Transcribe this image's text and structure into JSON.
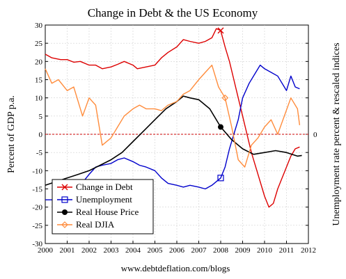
{
  "chart_data": {
    "type": "line",
    "title": "Change in Debt & the US Economy",
    "ylabel": "Percent of GDP p.a.",
    "y2label": "Unemployment rate percent & rescaled indices",
    "footer": "www.debtdeflation.com/blogs",
    "xlim": [
      2000,
      2012
    ],
    "ylim": [
      -30,
      30
    ],
    "xticks": [
      2000,
      2001,
      2002,
      2003,
      2004,
      2005,
      2006,
      2007,
      2008,
      2009,
      2010,
      2011,
      2012
    ],
    "yticks": [
      -30,
      -25,
      -20,
      -15,
      -10,
      -5,
      0,
      5,
      10,
      15,
      20,
      25,
      30
    ],
    "xtick_labels": [
      "2000",
      "2001",
      "2002",
      "2003",
      "2004",
      "2005",
      "2006",
      "2007",
      "2008",
      "2009",
      "2010",
      "2011",
      "2012"
    ],
    "ytick_labels": [
      "-30",
      "-25",
      "-20",
      "-15",
      "-10",
      "-5",
      "0",
      "5",
      "10",
      "15",
      "20",
      "25",
      "30"
    ],
    "right_zero_label": "0",
    "zero_line": true,
    "legend_position": "bottom-left",
    "series": [
      {
        "name": "Change in Debt",
        "color": "#dd0000",
        "marker": "x",
        "points": [
          [
            2000,
            22
          ],
          [
            2000.3,
            21
          ],
          [
            2000.7,
            20.5
          ],
          [
            2001,
            20.5
          ],
          [
            2001.3,
            19.8
          ],
          [
            2001.6,
            20
          ],
          [
            2002,
            19
          ],
          [
            2002.3,
            19
          ],
          [
            2002.6,
            18
          ],
          [
            2003,
            18.5
          ],
          [
            2003.3,
            19.2
          ],
          [
            2003.6,
            20
          ],
          [
            2004,
            19
          ],
          [
            2004.2,
            18
          ],
          [
            2004.6,
            18.5
          ],
          [
            2005,
            19
          ],
          [
            2005.3,
            21
          ],
          [
            2005.6,
            22.5
          ],
          [
            2006,
            24
          ],
          [
            2006.3,
            26
          ],
          [
            2006.6,
            25.5
          ],
          [
            2007,
            25
          ],
          [
            2007.3,
            25.5
          ],
          [
            2007.6,
            26.5
          ],
          [
            2007.8,
            29
          ],
          [
            2008,
            28.5
          ],
          [
            2008.2,
            24
          ],
          [
            2008.4,
            20
          ],
          [
            2008.6,
            15
          ],
          [
            2008.8,
            10
          ],
          [
            2009,
            5
          ],
          [
            2009.2,
            0
          ],
          [
            2009.4,
            -5
          ],
          [
            2009.6,
            -9
          ],
          [
            2009.8,
            -13
          ],
          [
            2010,
            -17
          ],
          [
            2010.2,
            -20
          ],
          [
            2010.4,
            -19
          ],
          [
            2010.6,
            -15
          ],
          [
            2010.8,
            -12
          ],
          [
            2011,
            -9
          ],
          [
            2011.2,
            -6
          ],
          [
            2011.4,
            -4
          ],
          [
            2011.6,
            -3.5
          ]
        ]
      },
      {
        "name": "Unemployment",
        "color": "#0000cc",
        "marker": "square",
        "points": [
          [
            2000,
            -18
          ],
          [
            2000.3,
            -18
          ],
          [
            2000.6,
            -17.5
          ],
          [
            2001,
            -17
          ],
          [
            2001.3,
            -16
          ],
          [
            2001.6,
            -14
          ],
          [
            2002,
            -11
          ],
          [
            2002.3,
            -9
          ],
          [
            2002.6,
            -8.5
          ],
          [
            2003,
            -8
          ],
          [
            2003.3,
            -7
          ],
          [
            2003.6,
            -6.5
          ],
          [
            2004,
            -7.5
          ],
          [
            2004.3,
            -8.5
          ],
          [
            2004.6,
            -9
          ],
          [
            2005,
            -10
          ],
          [
            2005.3,
            -12
          ],
          [
            2005.6,
            -13.5
          ],
          [
            2006,
            -14
          ],
          [
            2006.3,
            -14.5
          ],
          [
            2006.6,
            -14
          ],
          [
            2007,
            -14.5
          ],
          [
            2007.3,
            -15
          ],
          [
            2007.6,
            -14
          ],
          [
            2008,
            -12
          ],
          [
            2008.2,
            -9
          ],
          [
            2008.4,
            -4
          ],
          [
            2008.6,
            0
          ],
          [
            2008.8,
            4
          ],
          [
            2009,
            10
          ],
          [
            2009.3,
            14
          ],
          [
            2009.6,
            17
          ],
          [
            2009.8,
            19
          ],
          [
            2010,
            18
          ],
          [
            2010.3,
            17
          ],
          [
            2010.6,
            16
          ],
          [
            2010.9,
            13
          ],
          [
            2011,
            12
          ],
          [
            2011.2,
            16
          ],
          [
            2011.4,
            13
          ],
          [
            2011.6,
            12.5
          ]
        ]
      },
      {
        "name": "Real House Price",
        "color": "#000000",
        "marker": "circle",
        "points": [
          [
            2000,
            -14
          ],
          [
            2000.5,
            -13
          ],
          [
            2001,
            -12
          ],
          [
            2001.5,
            -11
          ],
          [
            2002,
            -10
          ],
          [
            2002.5,
            -8.5
          ],
          [
            2003,
            -7
          ],
          [
            2003.5,
            -5
          ],
          [
            2004,
            -2
          ],
          [
            2004.5,
            1
          ],
          [
            2005,
            4
          ],
          [
            2005.5,
            7
          ],
          [
            2006,
            9
          ],
          [
            2006.3,
            10.5
          ],
          [
            2006.6,
            10
          ],
          [
            2007,
            9.5
          ],
          [
            2007.5,
            7
          ],
          [
            2008,
            2
          ],
          [
            2008.5,
            -1.5
          ],
          [
            2009,
            -4
          ],
          [
            2009.5,
            -5.5
          ],
          [
            2010,
            -5
          ],
          [
            2010.5,
            -4.5
          ],
          [
            2011,
            -5
          ],
          [
            2011.5,
            -6
          ],
          [
            2011.7,
            -5.8
          ]
        ]
      },
      {
        "name": "Real DJIA",
        "color": "#ff8c3c",
        "marker": "diamond",
        "points": [
          [
            2000,
            18
          ],
          [
            2000.3,
            14
          ],
          [
            2000.6,
            15
          ],
          [
            2001,
            12
          ],
          [
            2001.3,
            13
          ],
          [
            2001.7,
            5
          ],
          [
            2002,
            10
          ],
          [
            2002.3,
            8
          ],
          [
            2002.6,
            -3
          ],
          [
            2003,
            -1
          ],
          [
            2003.3,
            2
          ],
          [
            2003.6,
            5
          ],
          [
            2004,
            7
          ],
          [
            2004.3,
            8
          ],
          [
            2004.6,
            7
          ],
          [
            2005,
            7
          ],
          [
            2005.3,
            6.5
          ],
          [
            2005.6,
            8
          ],
          [
            2006,
            9
          ],
          [
            2006.3,
            11
          ],
          [
            2006.6,
            12
          ],
          [
            2007,
            15
          ],
          [
            2007.3,
            17
          ],
          [
            2007.6,
            19
          ],
          [
            2007.9,
            13
          ],
          [
            2008.2,
            10
          ],
          [
            2008.5,
            2
          ],
          [
            2008.8,
            -7
          ],
          [
            2009.1,
            -9
          ],
          [
            2009.4,
            -3
          ],
          [
            2009.7,
            -1
          ],
          [
            2010,
            2
          ],
          [
            2010.3,
            4
          ],
          [
            2010.6,
            0
          ],
          [
            2010.9,
            5
          ],
          [
            2011.2,
            10
          ],
          [
            2011.5,
            7
          ],
          [
            2011.6,
            2.5
          ]
        ]
      }
    ]
  }
}
